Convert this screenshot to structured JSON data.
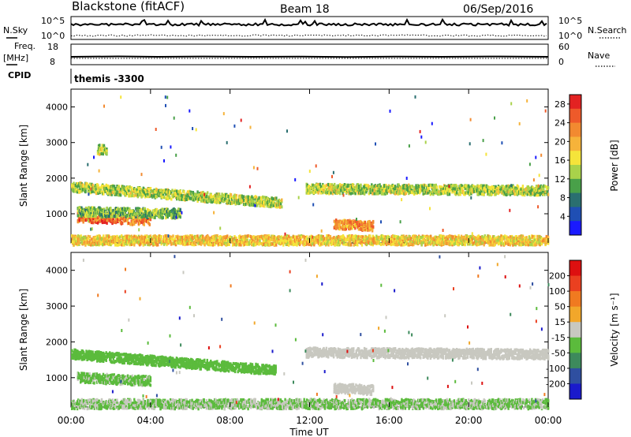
{
  "header": {
    "station": "Blackstone (fitACF)",
    "beam": "Beam 18",
    "date": "06/Sep/2016"
  },
  "nsky_panel": {
    "left_label": "N.Sky",
    "right_label": "N.Search",
    "ticks": [
      "10^5",
      "10^0"
    ]
  },
  "freq_panel": {
    "left_label": "Freq.",
    "left_unit": "[MHz]",
    "left_ticks": [
      "18",
      "8"
    ],
    "right_label": "Nave",
    "right_ticks": [
      "60",
      "0"
    ]
  },
  "cpid_panel": {
    "label": "CPID",
    "mode": "themis -3300"
  },
  "x_axis": {
    "label": "Time UT",
    "ticks": [
      "00:00",
      "04:00",
      "08:00",
      "12:00",
      "16:00",
      "20:00",
      "00:00"
    ]
  },
  "chart_data": [
    {
      "type": "heatmap",
      "title": "",
      "xlabel": "Time UT",
      "ylabel": "Slant Range [km]",
      "x_ticks": [
        "00:00",
        "04:00",
        "08:00",
        "12:00",
        "16:00",
        "20:00",
        "00:00"
      ],
      "y_ticks": [
        "1000",
        "2000",
        "3000",
        "4000"
      ],
      "xlim_hours": [
        0,
        24
      ],
      "ylim": [
        180,
        4500
      ],
      "colorbar": {
        "label": "Power [dB]",
        "ticks": [
          "4",
          "8",
          "12",
          "16",
          "20",
          "24",
          "28"
        ],
        "range": [
          0,
          30
        ],
        "colors": [
          "#1a1aff",
          "#1f4fb4",
          "#2a6f70",
          "#49a049",
          "#a9d24a",
          "#f5e43a",
          "#f6b33a",
          "#f28a30",
          "#ee5a2a",
          "#e32222"
        ]
      },
      "echo_bands": [
        {
          "t_start": 0.0,
          "t_end": 10.6,
          "range_start": 1750,
          "range_end": 1300,
          "value": 14
        },
        {
          "t_start": 0.3,
          "t_end": 4.0,
          "range_start": 900,
          "range_end": 800,
          "value": 24
        },
        {
          "t_start": 0.3,
          "t_end": 5.5,
          "range_start": 1050,
          "range_end": 1000,
          "value": 12
        },
        {
          "t_start": 1.3,
          "t_end": 1.8,
          "range_start": 2800,
          "range_end": 2800,
          "value": 14
        },
        {
          "t_start": 11.8,
          "t_end": 24.0,
          "range_start": 1700,
          "range_end": 1650,
          "value": 14
        },
        {
          "t_start": 13.2,
          "t_end": 15.2,
          "range_start": 700,
          "range_end": 650,
          "value": 22
        },
        {
          "t_start": 0.0,
          "t_end": 24.0,
          "range_start": 250,
          "range_end": 250,
          "value": 18
        }
      ]
    },
    {
      "type": "heatmap",
      "title": "",
      "xlabel": "Time UT",
      "ylabel": "Slant Range [km]",
      "x_ticks": [
        "00:00",
        "04:00",
        "08:00",
        "12:00",
        "16:00",
        "20:00",
        "00:00"
      ],
      "y_ticks": [
        "1000",
        "2000",
        "3000",
        "4000"
      ],
      "xlim_hours": [
        0,
        24
      ],
      "ylim": [
        180,
        4500
      ],
      "colorbar": {
        "label": "Velocity [m s⁻¹]",
        "ticks": [
          "200",
          "100",
          "50",
          "15",
          "-15",
          "-50",
          "-100",
          "-200"
        ],
        "range": [
          -250,
          250
        ],
        "colors": [
          "#1a1acc",
          "#2f4fa0",
          "#3d8a5c",
          "#5bbb3c",
          "#c8c8c0",
          "#f2a72a",
          "#f07a20",
          "#ea4020",
          "#dd1010"
        ]
      },
      "echo_bands": [
        {
          "t_start": 0.0,
          "t_end": 10.3,
          "range_start": 1650,
          "range_end": 1200,
          "value": -60
        },
        {
          "t_start": 0.3,
          "t_end": 4.0,
          "range_start": 1000,
          "range_end": 900,
          "value": -40
        },
        {
          "t_start": 11.8,
          "t_end": 24.0,
          "range_start": 1700,
          "range_end": 1650,
          "value": 0
        },
        {
          "t_start": 13.2,
          "t_end": 15.2,
          "range_start": 700,
          "range_end": 650,
          "value": 0
        },
        {
          "t_start": 0.0,
          "t_end": 24.0,
          "range_start": 260,
          "range_end": 260,
          "value": -30
        }
      ]
    }
  ]
}
